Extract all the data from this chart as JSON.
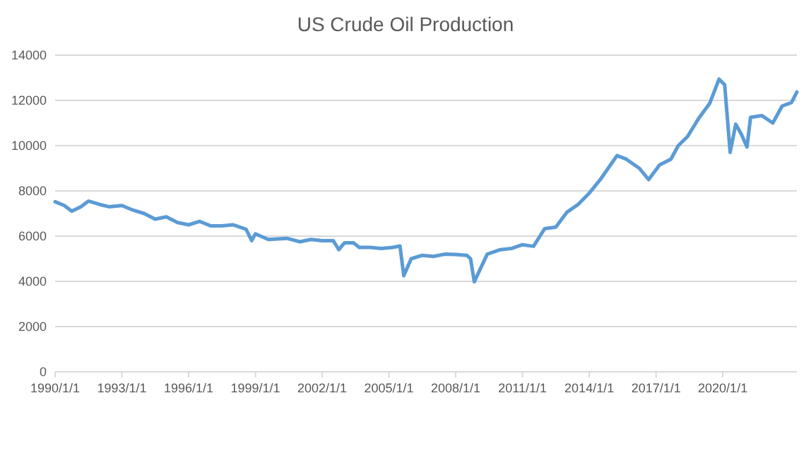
{
  "chart_data": {
    "type": "line",
    "title": "US Crude Oil Production",
    "x": [
      "1990-01",
      "1990-06",
      "1990-10",
      "1991-03",
      "1991-07",
      "1992-01",
      "1992-06",
      "1993-01",
      "1993-07",
      "1994-01",
      "1994-07",
      "1995-01",
      "1995-07",
      "1996-01",
      "1996-07",
      "1997-01",
      "1997-07",
      "1998-01",
      "1998-08",
      "1998-11",
      "1999-01",
      "1999-08",
      "2000-06",
      "2001-01",
      "2001-07",
      "2002-01",
      "2002-07",
      "2002-10",
      "2003-01",
      "2003-06",
      "2003-09",
      "2004-03",
      "2004-09",
      "2005-03",
      "2005-07",
      "2005-09",
      "2006-01",
      "2006-07",
      "2007-01",
      "2007-07",
      "2008-01",
      "2008-07",
      "2008-09",
      "2008-11",
      "2009-06",
      "2010-01",
      "2010-07",
      "2011-01",
      "2011-07",
      "2012-01",
      "2012-07",
      "2013-01",
      "2013-07",
      "2014-01",
      "2014-07",
      "2015-04",
      "2015-09",
      "2016-04",
      "2016-09",
      "2017-03",
      "2017-09",
      "2018-01",
      "2018-06",
      "2018-12",
      "2019-06",
      "2019-11",
      "2020-02",
      "2020-05",
      "2020-08",
      "2020-11",
      "2021-02",
      "2021-04",
      "2021-10",
      "2022-04",
      "2022-09",
      "2023-02",
      "2023-05"
    ],
    "series": [
      {
        "color": "#5b9bd5",
        "values": [
          7520,
          7350,
          7100,
          7300,
          7550,
          7400,
          7300,
          7350,
          7150,
          7000,
          6750,
          6850,
          6600,
          6500,
          6650,
          6450,
          6450,
          6500,
          6300,
          5800,
          6100,
          5850,
          5900,
          5750,
          5850,
          5800,
          5800,
          5400,
          5700,
          5700,
          5500,
          5500,
          5450,
          5500,
          5560,
          4250,
          5000,
          5150,
          5100,
          5200,
          5190,
          5150,
          5000,
          3980,
          5200,
          5400,
          5450,
          5620,
          5550,
          6330,
          6400,
          7060,
          7400,
          7900,
          8500,
          9560,
          9400,
          9000,
          8500,
          9150,
          9400,
          10000,
          10400,
          11200,
          11870,
          12940,
          12690,
          9700,
          10950,
          10500,
          9940,
          11250,
          11330,
          11000,
          11750,
          11900,
          12370
        ]
      }
    ],
    "xlim": [
      "1990-01",
      "2023-05"
    ],
    "xticks": [
      {
        "value": "1990-01-01",
        "label": "1990/1/1"
      },
      {
        "value": "1993-01-01",
        "label": "1993/1/1"
      },
      {
        "value": "1996-01-01",
        "label": "1996/1/1"
      },
      {
        "value": "1999-01-01",
        "label": "1999/1/1"
      },
      {
        "value": "2002-01-01",
        "label": "2002/1/1"
      },
      {
        "value": "2005-01-01",
        "label": "2005/1/1"
      },
      {
        "value": "2008-01-01",
        "label": "2008/1/1"
      },
      {
        "value": "2011-01-01",
        "label": "2011/1/1"
      },
      {
        "value": "2014-01-01",
        "label": "2014/1/1"
      },
      {
        "value": "2017-01-01",
        "label": "2017/1/1"
      },
      {
        "value": "2020-01-01",
        "label": "2020/1/1"
      }
    ],
    "ylim": [
      0,
      14000
    ],
    "yticks": [
      0,
      2000,
      4000,
      6000,
      8000,
      10000,
      12000,
      14000
    ],
    "grid": "y",
    "marker": "none",
    "line_style": "solid"
  }
}
